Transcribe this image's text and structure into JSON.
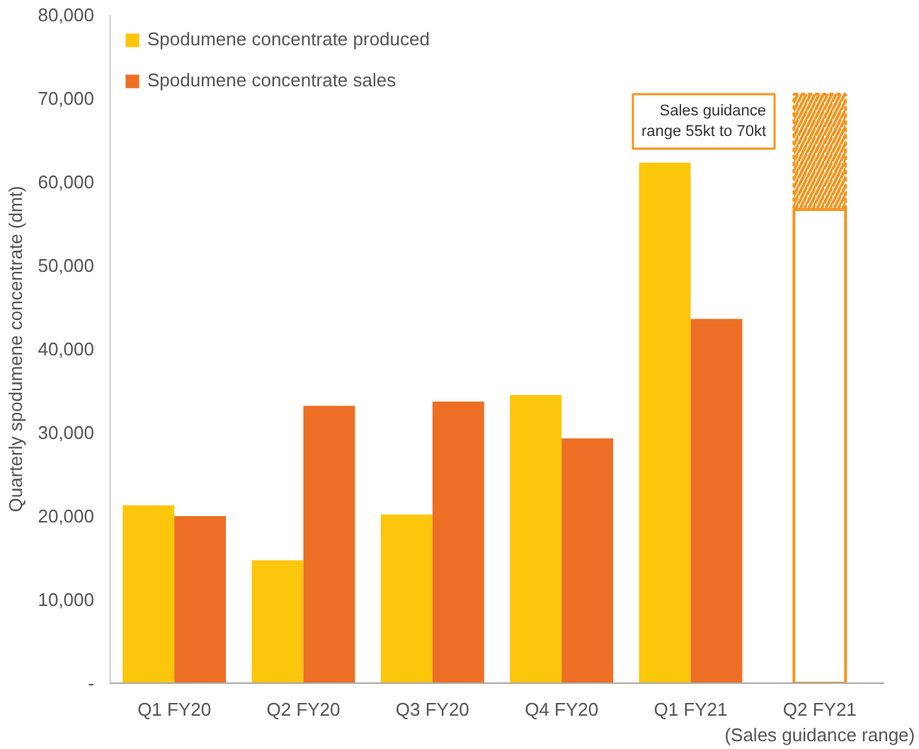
{
  "chart_data": {
    "type": "bar",
    "ylabel": "Quarterly spodumene concentrate (dmt)",
    "categories": [
      "Q1 FY20",
      "Q2 FY20",
      "Q3 FY20",
      "Q4 FY20",
      "Q1 FY21",
      "Q2 FY21\n(Sales guidance range)"
    ],
    "series": [
      {
        "name": "Spodumene concentrate produced",
        "color": "#fcc60c",
        "values": [
          21300,
          14700,
          20200,
          34500,
          62300,
          null
        ]
      },
      {
        "name": "Spodumene concentrate sales",
        "color": "#ed6f25",
        "values": [
          20000,
          33200,
          33700,
          29300,
          43600,
          null
        ]
      },
      {
        "color": "#f7941d",
        "values": [
          null,
          null,
          null,
          null,
          null,
          56700
        ],
        "base": [
          null,
          null,
          null,
          null,
          null,
          0
        ],
        "line_style": "solid"
      },
      {
        "color": "#f7941d",
        "values": [
          null,
          null,
          null,
          null,
          null,
          13800
        ],
        "base": [
          null,
          null,
          null,
          null,
          null,
          56700
        ],
        "line_style": "dashed"
      }
    ],
    "ylim": [
      0,
      80000
    ],
    "yticks": [
      {
        "value": 0,
        "label": "-"
      },
      {
        "value": 10000,
        "label": "10,000"
      },
      {
        "value": 20000,
        "label": "20,000"
      },
      {
        "value": 30000,
        "label": "30,000"
      },
      {
        "value": 40000,
        "label": "40,000"
      },
      {
        "value": 50000,
        "label": "50,000"
      },
      {
        "value": 60000,
        "label": "60,000"
      },
      {
        "value": 70000,
        "label": "70,000"
      },
      {
        "value": 80000,
        "label": "80,000"
      }
    ],
    "legend": "top left",
    "grid": false,
    "annotations": [
      "Sales guidance\nrange 55kt to 70kt"
    ]
  }
}
